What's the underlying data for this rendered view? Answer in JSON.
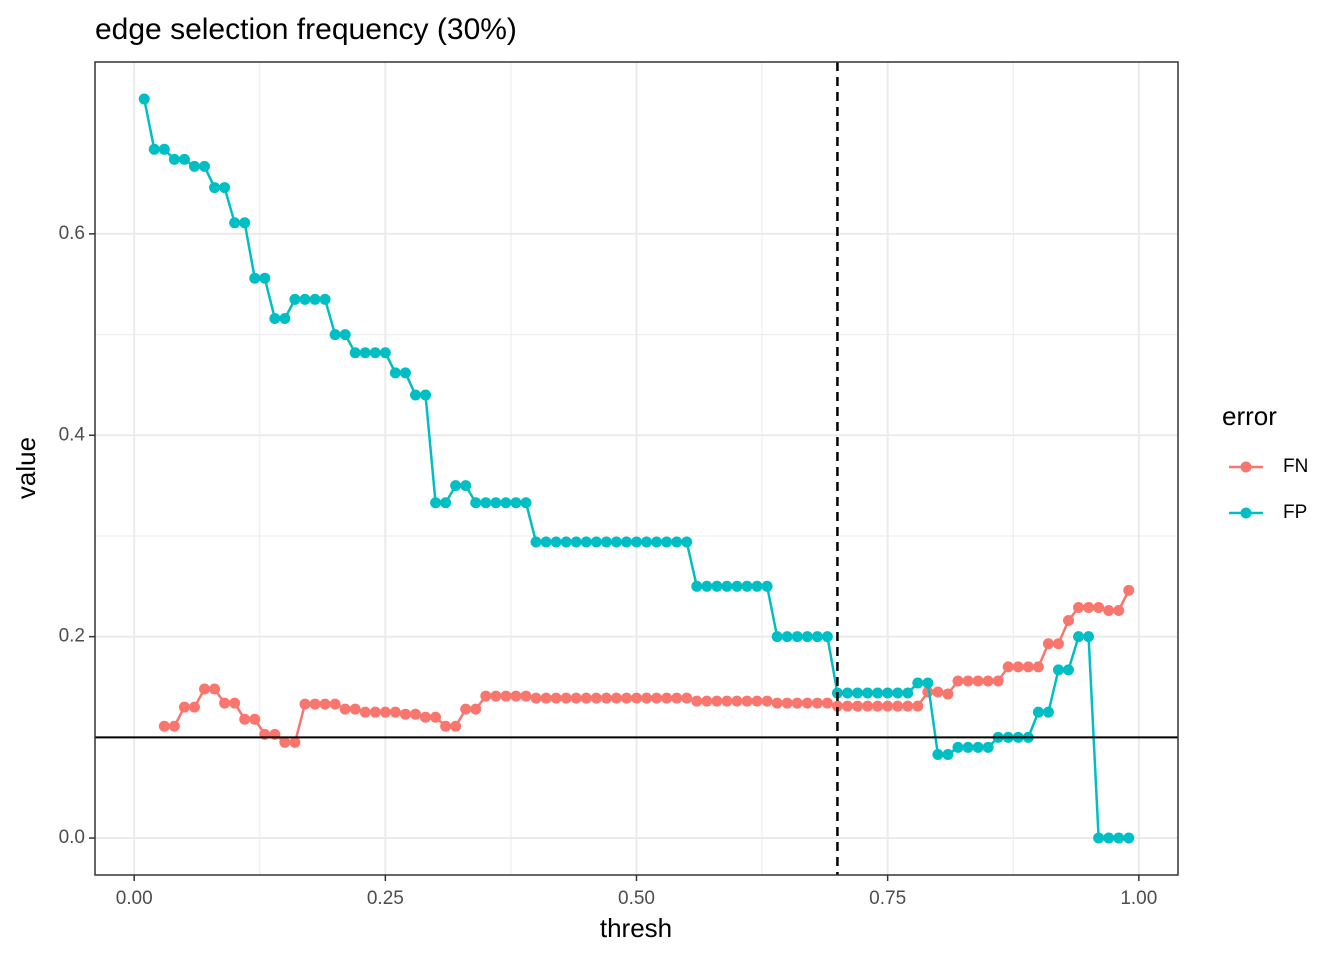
{
  "chart_data": {
    "type": "line",
    "title": "edge selection frequency (30%)",
    "x_label": "thresh",
    "y_label": "value",
    "legend_title": "error",
    "legend_position": "right",
    "grid": true,
    "xlim": [
      -0.039,
      1.039
    ],
    "ylim": [
      -0.0367,
      0.7707
    ],
    "xticks": [
      {
        "value": 0,
        "label": "0.00"
      },
      {
        "value": 0.25,
        "label": "0.25"
      },
      {
        "value": 0.5,
        "label": "0.50"
      },
      {
        "value": 0.75,
        "label": "0.75"
      },
      {
        "value": 1,
        "label": "1.00"
      }
    ],
    "yticks": [
      {
        "value": 0,
        "label": "0.0"
      },
      0.2,
      0.4,
      0.6
    ],
    "hline": 0.1,
    "vline": 0.7,
    "x": [
      0.01,
      0.02,
      0.03,
      0.04,
      0.05,
      0.06,
      0.07,
      0.08,
      0.09,
      0.1,
      0.11,
      0.12,
      0.13,
      0.14,
      0.15,
      0.16,
      0.17,
      0.18,
      0.19,
      0.2,
      0.21,
      0.22,
      0.23,
      0.24,
      0.25,
      0.26,
      0.27,
      0.28,
      0.29,
      0.3,
      0.31,
      0.32,
      0.33,
      0.34,
      0.35,
      0.36,
      0.37,
      0.38,
      0.39,
      0.4,
      0.41,
      0.42,
      0.43,
      0.44,
      0.45,
      0.46,
      0.47,
      0.48,
      0.49,
      0.5,
      0.51,
      0.52,
      0.53,
      0.54,
      0.55,
      0.56,
      0.57,
      0.58,
      0.59,
      0.6,
      0.61,
      0.62,
      0.63,
      0.64,
      0.65,
      0.66,
      0.67,
      0.68,
      0.69,
      0.7,
      0.71,
      0.72,
      0.73,
      0.74,
      0.75,
      0.76,
      0.77,
      0.78,
      0.79,
      0.8,
      0.81,
      0.82,
      0.83,
      0.84,
      0.85,
      0.86,
      0.87,
      0.88,
      0.89,
      0.9,
      0.91,
      0.92,
      0.93,
      0.94,
      0.95,
      0.96,
      0.97,
      0.98,
      0.99
    ],
    "series": [
      {
        "name": "FN",
        "color": "#F8766D",
        "values": [
          null,
          null,
          0.111,
          0.111,
          0.13,
          0.13,
          0.148,
          0.148,
          0.134,
          0.134,
          0.118,
          0.118,
          0.103,
          0.103,
          0.095,
          0.095,
          0.133,
          0.133,
          0.133,
          0.133,
          0.128,
          0.128,
          0.125,
          0.125,
          0.125,
          0.125,
          0.123,
          0.123,
          0.12,
          0.12,
          0.111,
          0.111,
          0.128,
          0.128,
          0.141,
          0.141,
          0.141,
          0.141,
          0.141,
          0.139,
          0.139,
          0.139,
          0.139,
          0.139,
          0.139,
          0.139,
          0.139,
          0.139,
          0.139,
          0.139,
          0.139,
          0.139,
          0.139,
          0.139,
          0.139,
          0.136,
          0.136,
          0.136,
          0.136,
          0.136,
          0.136,
          0.136,
          0.136,
          0.134,
          0.134,
          0.134,
          0.134,
          0.134,
          0.134,
          0.131,
          0.131,
          0.131,
          0.131,
          0.131,
          0.131,
          0.131,
          0.131,
          0.131,
          0.145,
          0.145,
          0.143,
          0.156,
          0.156,
          0.156,
          0.156,
          0.156,
          0.17,
          0.17,
          0.17,
          0.17,
          0.193,
          0.193,
          0.216,
          0.229,
          0.229,
          0.229,
          0.226,
          0.226,
          0.246
        ]
      },
      {
        "name": "FP",
        "color": "#00BFC4",
        "values": [
          0.734,
          0.684,
          0.684,
          0.674,
          0.674,
          0.667,
          0.667,
          0.646,
          0.646,
          0.611,
          0.611,
          0.556,
          0.556,
          0.516,
          0.516,
          0.535,
          0.535,
          0.535,
          0.535,
          0.5,
          0.5,
          0.482,
          0.482,
          0.482,
          0.482,
          0.462,
          0.462,
          0.44,
          0.44,
          0.333,
          0.333,
          0.35,
          0.35,
          0.333,
          0.333,
          0.333,
          0.333,
          0.333,
          0.333,
          0.294,
          0.294,
          0.294,
          0.294,
          0.294,
          0.294,
          0.294,
          0.294,
          0.294,
          0.294,
          0.294,
          0.294,
          0.294,
          0.294,
          0.294,
          0.294,
          0.25,
          0.25,
          0.25,
          0.25,
          0.25,
          0.25,
          0.25,
          0.25,
          0.2,
          0.2,
          0.2,
          0.2,
          0.2,
          0.2,
          0.144,
          0.144,
          0.144,
          0.144,
          0.144,
          0.144,
          0.144,
          0.144,
          0.154,
          0.154,
          0.083,
          0.083,
          0.09,
          0.09,
          0.09,
          0.09,
          0.1,
          0.1,
          0.1,
          0.1,
          0.125,
          0.125,
          0.167,
          0.167,
          0.2,
          0.2,
          0,
          0,
          0,
          0
        ]
      }
    ]
  }
}
